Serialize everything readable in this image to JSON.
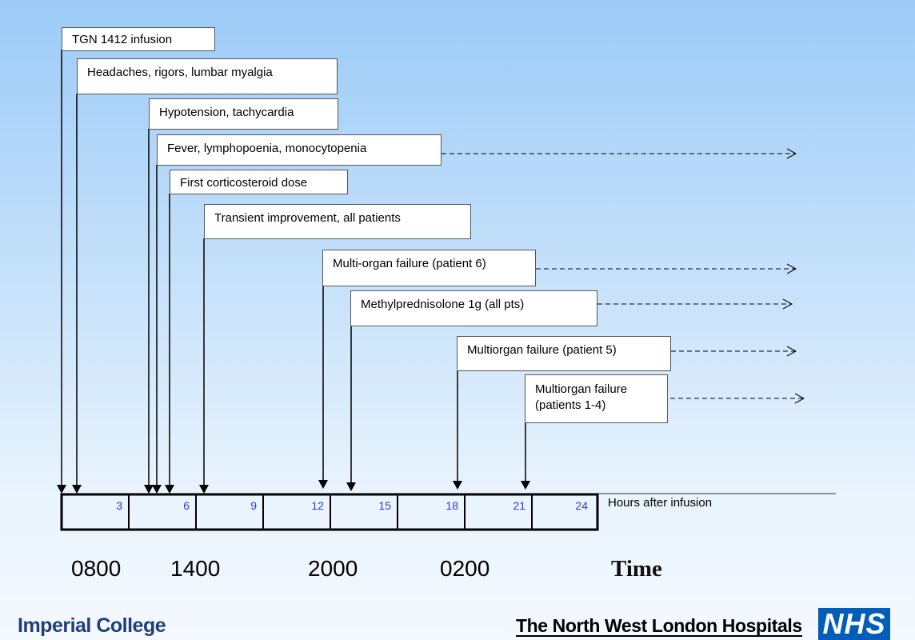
{
  "events": [
    {
      "label": "TGN 1412 infusion"
    },
    {
      "label": "Headaches, rigors, lumbar myalgia"
    },
    {
      "label": "Hypotension, tachycardia"
    },
    {
      "label": "Fever, lymphopoenia, monocytopenia"
    },
    {
      "label": "First corticosteroid dose"
    },
    {
      "label": "Transient improvement, all patients"
    },
    {
      "label": "Multi-organ failure (patient 6)"
    },
    {
      "label": "Methylprednisolone 1g (all pts)"
    },
    {
      "label": "Multiorgan failure (patient 5)"
    },
    {
      "label": "Multiorgan failure\n (patients 1-4)"
    }
  ],
  "scale": {
    "ticks": [
      "3",
      "6",
      "9",
      "12",
      "15",
      "18",
      "21",
      "24"
    ],
    "caption": "Hours after infusion"
  },
  "clock_times": [
    "0800",
    "1400",
    "2000",
    "0200"
  ],
  "time_label": "Time",
  "logos": {
    "imperial": "Imperial College",
    "nwlh": "The North West London Hospitals",
    "nhs": "NHS"
  },
  "colors": {
    "background_top": "#9ccbf7",
    "tick_label": "#2b3bd6",
    "nhs_blue": "#005eb8"
  }
}
